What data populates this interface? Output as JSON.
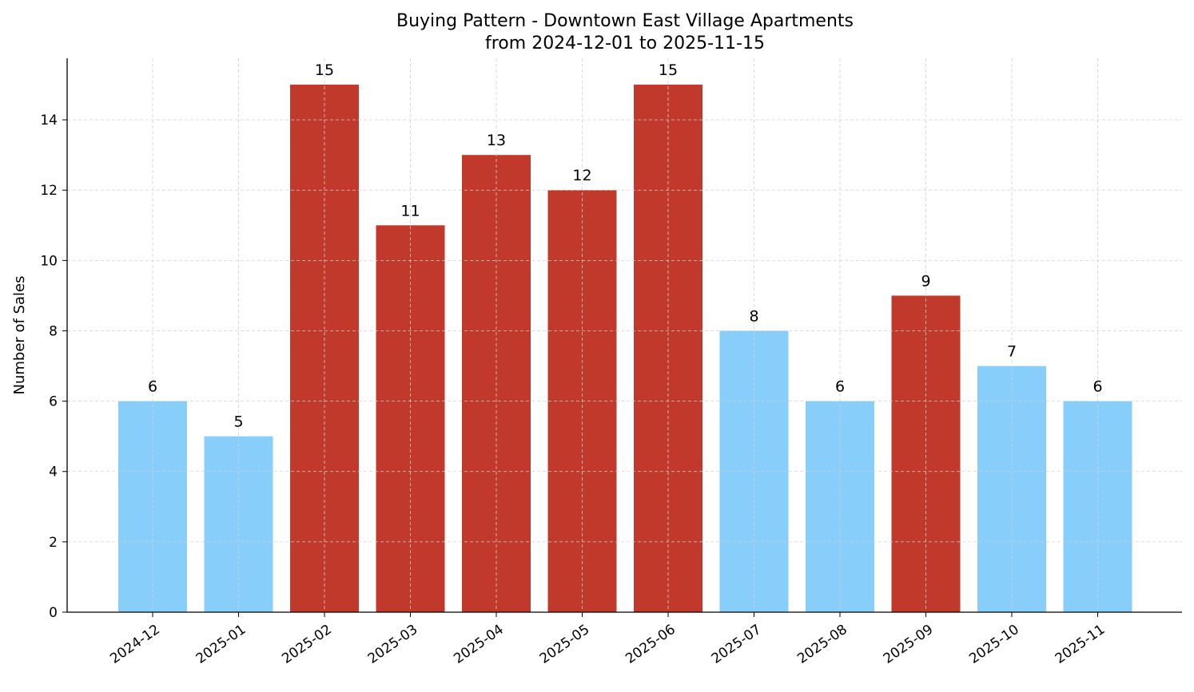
{
  "chart_data": {
    "type": "bar",
    "title": "Buying Pattern - Downtown East Village Apartments",
    "subtitle": "from 2024-12-01 to 2025-11-15",
    "xlabel": "",
    "ylabel": "Number of Sales",
    "categories": [
      "2024-12",
      "2025-01",
      "2025-02",
      "2025-03",
      "2025-04",
      "2025-05",
      "2025-06",
      "2025-07",
      "2025-08",
      "2025-09",
      "2025-10",
      "2025-11"
    ],
    "values": [
      6,
      5,
      15,
      11,
      13,
      12,
      15,
      8,
      6,
      9,
      7,
      6
    ],
    "highlighted": [
      false,
      false,
      true,
      true,
      true,
      true,
      true,
      false,
      false,
      true,
      false,
      false
    ],
    "colors": {
      "normal": "#87CEFA",
      "highlight": "#C0392B"
    },
    "ylim": [
      0,
      15.75
    ],
    "yticks": [
      0,
      2,
      4,
      6,
      8,
      10,
      12,
      14
    ],
    "grid": true,
    "data_labels": true
  }
}
